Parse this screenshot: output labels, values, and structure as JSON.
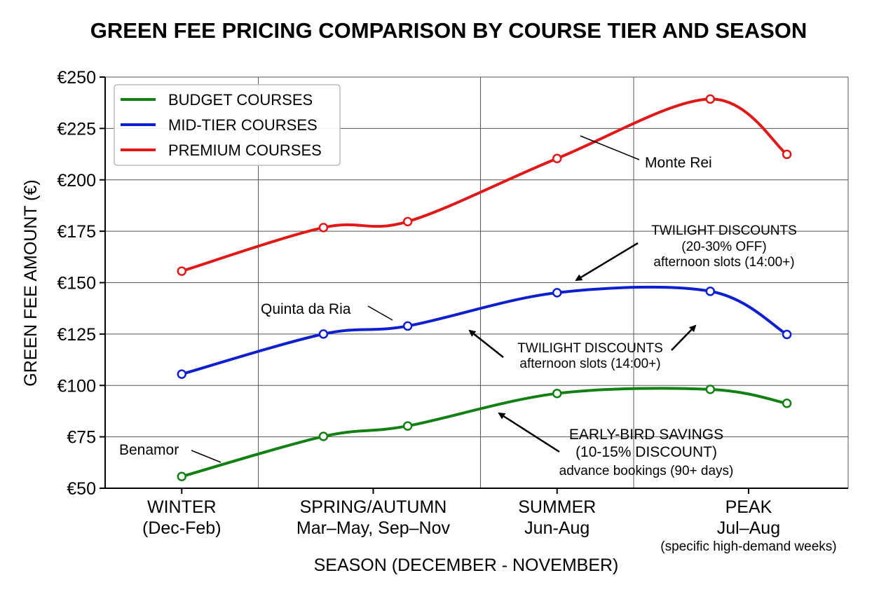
{
  "chart_data": {
    "type": "line",
    "title": "GREEN FEE PRICING COMPARISON BY COURSE TIER AND SEASON",
    "xlabel": "SEASON (DECEMBER - NOVEMBER)",
    "ylabel": "GREEN FEE AMOUNT (€)",
    "ylim": [
      50,
      250
    ],
    "yticks": [
      {
        "value": 50,
        "label": "€50"
      },
      {
        "value": 75,
        "label": "€75"
      },
      {
        "value": 100,
        "label": "€100"
      },
      {
        "value": 125,
        "label": "€125"
      },
      {
        "value": 150,
        "label": "€150"
      },
      {
        "value": 175,
        "label": "€175"
      },
      {
        "value": 200,
        "label": "€200"
      },
      {
        "value": 225,
        "label": "€225"
      },
      {
        "value": 250,
        "label": "€250"
      }
    ],
    "xlim": [
      -1.0,
      8.7
    ],
    "xticks": [
      {
        "x": 0,
        "line1": "WINTER",
        "line2": "(Dec-Feb)",
        "line3": ""
      },
      {
        "x": 2.5,
        "line1": "SPRING/AUTUMN",
        "line2": "Mar–May, Sep–Nov",
        "line3": ""
      },
      {
        "x": 4.9,
        "line1": "SUMMER",
        "line2": "Jun-Aug",
        "line3": ""
      },
      {
        "x": 7.4,
        "line1": "PEAK",
        "line2": "Jul–Aug",
        "line3": "(specific high-demand weeks)"
      }
    ],
    "vgrid_x": [
      -1.0,
      1.0,
      3.9,
      5.9,
      8.7
    ],
    "grid": true,
    "legend_position": "top-left",
    "series": [
      {
        "name": "BUDGET COURSES",
        "color": "#138013",
        "points": [
          [
            0,
            55.7
          ],
          [
            1.85,
            75.2
          ],
          [
            2.95,
            80.3
          ],
          [
            4.9,
            96.1
          ],
          [
            6.9,
            98.1
          ],
          [
            7.9,
            91.3
          ]
        ]
      },
      {
        "name": "MID-TIER COURSES",
        "color": "#0f1fd0",
        "points": [
          [
            0,
            105.5
          ],
          [
            1.85,
            125.0
          ],
          [
            2.95,
            128.9
          ],
          [
            4.9,
            145.1
          ],
          [
            6.9,
            145.8
          ],
          [
            7.9,
            124.8
          ]
        ]
      },
      {
        "name": "PREMIUM COURSES",
        "color": "#e01818",
        "points": [
          [
            0,
            155.6
          ],
          [
            1.85,
            176.8
          ],
          [
            2.95,
            179.7
          ],
          [
            4.9,
            210.4
          ],
          [
            6.9,
            239.3
          ],
          [
            7.9,
            212.4
          ]
        ]
      }
    ],
    "annotations": [
      {
        "id": "benamor",
        "lines": [
          "Benamor"
        ]
      },
      {
        "id": "quinta",
        "lines": [
          "Quinta da Ria"
        ]
      },
      {
        "id": "monte",
        "lines": [
          "Monte Rei"
        ]
      },
      {
        "id": "twilight1",
        "lines": [
          "TWILIGHT DISCOUNTS",
          "(20-30% OFF)",
          "afternoon slots (14:00+)"
        ]
      },
      {
        "id": "twilight2",
        "lines": [
          "TWILIGHT DISCOUNTS",
          "afternoon slots (14:00+)"
        ]
      },
      {
        "id": "earlybird",
        "lines": [
          "EARLY-BIRD SAVINGS",
          "(10-15% DISCOUNT)",
          "advance bookings (90+ days)"
        ]
      }
    ]
  }
}
